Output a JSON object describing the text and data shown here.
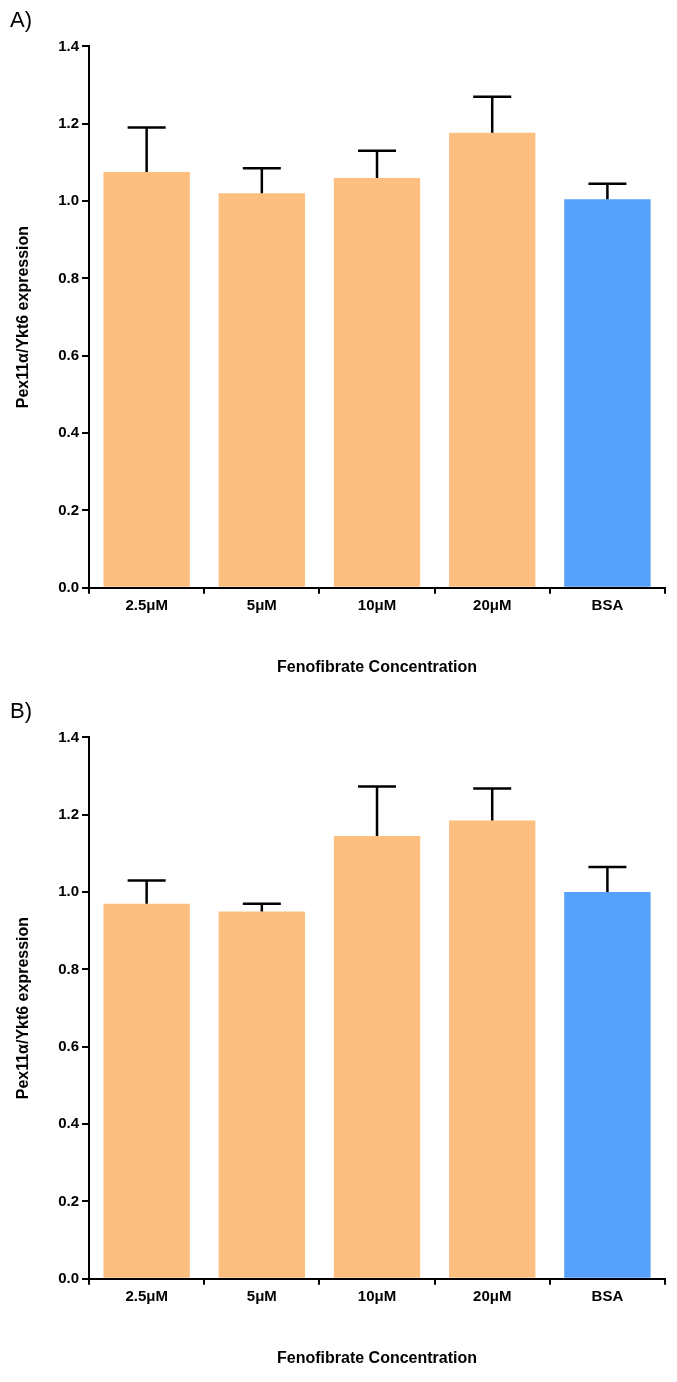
{
  "chart_data": [
    {
      "type": "bar",
      "title": "A)",
      "xlabel": "Fenofibrate Concentration",
      "ylabel": "Pex11α/Ykt6 expression",
      "categories": [
        "2.5μM",
        "5μM",
        "10μM",
        "20μM",
        "BSA"
      ],
      "values": [
        1.075,
        1.02,
        1.06,
        1.177,
        1.005
      ],
      "colors": [
        "#fdbf80",
        "#fdbf80",
        "#fdbf80",
        "#fdbf80",
        "#55a1fb"
      ],
      "errors": [
        [
          1.075,
          1.19
        ],
        [
          1.02,
          1.085
        ],
        [
          1.06,
          1.13
        ],
        [
          1.177,
          1.27
        ],
        [
          1.005,
          1.045
        ]
      ],
      "ylim": [
        0,
        1.4
      ],
      "yticks": [
        {
          "value": 0,
          "label": "0.0"
        },
        {
          "value": 0.2,
          "label": "0.2"
        },
        {
          "value": 0.4,
          "label": "0.4"
        },
        {
          "value": 0.6,
          "label": "0.6"
        },
        {
          "value": 0.8,
          "label": "0.8"
        },
        {
          "value": 1,
          "label": "1.0"
        },
        {
          "value": 1.2,
          "label": "1.2"
        },
        {
          "value": 1.4,
          "label": "1.4"
        }
      ],
      "legend": false
    },
    {
      "type": "bar",
      "title": "B)",
      "xlabel": "Fenofibrate Concentration",
      "ylabel": "Pex11α/Ykt6 expression",
      "categories": [
        "2.5μM",
        "5μM",
        "10μM",
        "20μM",
        "BSA"
      ],
      "values": [
        0.97,
        0.95,
        1.145,
        1.185,
        1.0
      ],
      "colors": [
        "#fdbf80",
        "#fdbf80",
        "#fdbf80",
        "#fdbf80",
        "#55a1fb"
      ],
      "errors": [
        [
          0.97,
          1.03
        ],
        [
          0.95,
          0.97
        ],
        [
          1.145,
          1.273
        ],
        [
          1.185,
          1.268
        ],
        [
          1.0,
          1.065
        ]
      ],
      "ylim": [
        0,
        1.4
      ],
      "yticks": [
        {
          "value": 0,
          "label": "0.0"
        },
        {
          "value": 0.2,
          "label": "0.2"
        },
        {
          "value": 0.4,
          "label": "0.4"
        },
        {
          "value": 0.6,
          "label": "0.6"
        },
        {
          "value": 0.8,
          "label": "0.8"
        },
        {
          "value": 1,
          "label": "1.0"
        },
        {
          "value": 1.2,
          "label": "1.2"
        },
        {
          "value": 1.4,
          "label": "1.4"
        }
      ],
      "legend": false
    }
  ]
}
